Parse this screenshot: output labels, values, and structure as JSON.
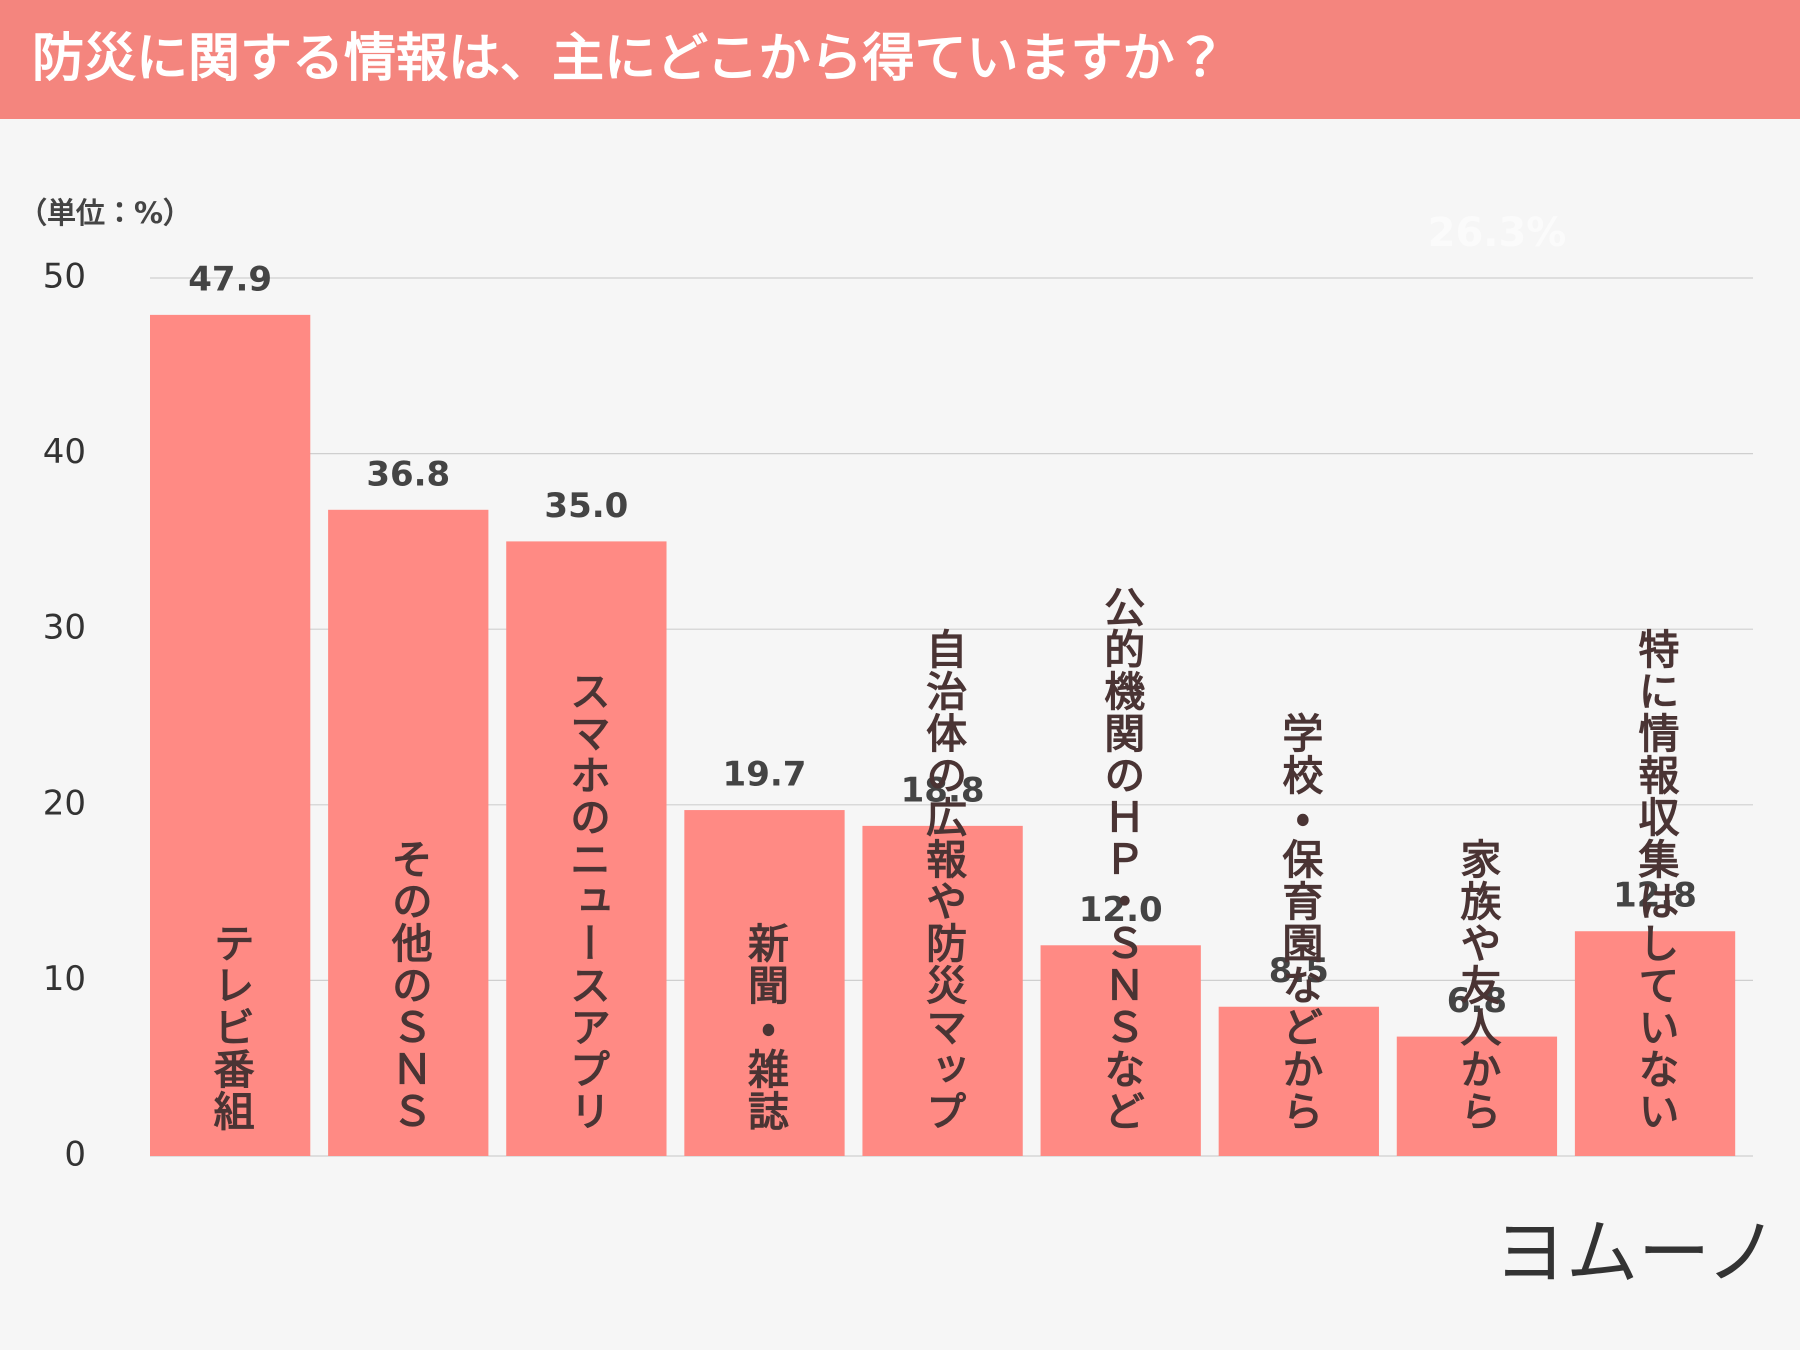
{
  "chart_data": {
    "type": "bar",
    "title": "防災に関する情報は、主にどこから得ていますか？",
    "ylabel": "（単位：%）",
    "annotation": "26.3%",
    "logo": "ヨムーノ",
    "categories": [
      "テレビ番組",
      "その他のＳＮＳ",
      "スマホのニュースアプリ",
      "新聞・雑誌",
      "自治体の広報や防災マップ",
      "公的機関のＨＰ・ＳＮＳなど",
      "学校・保育園などから",
      "家族や友人から",
      "特に情報収集はしていない"
    ],
    "values": [
      47.9,
      36.8,
      35.0,
      19.7,
      18.8,
      12.0,
      8.5,
      6.8,
      12.8
    ],
    "value_labels": [
      "47.9",
      "36.8",
      "35.0",
      "19.7",
      "18.8",
      "12.0",
      "8.5",
      "6.8",
      "12.8"
    ],
    "color": "#ff8a84",
    "ylim": [
      0,
      50
    ],
    "yticks": [
      0,
      10,
      20,
      30,
      40,
      50
    ],
    "grid": true
  }
}
